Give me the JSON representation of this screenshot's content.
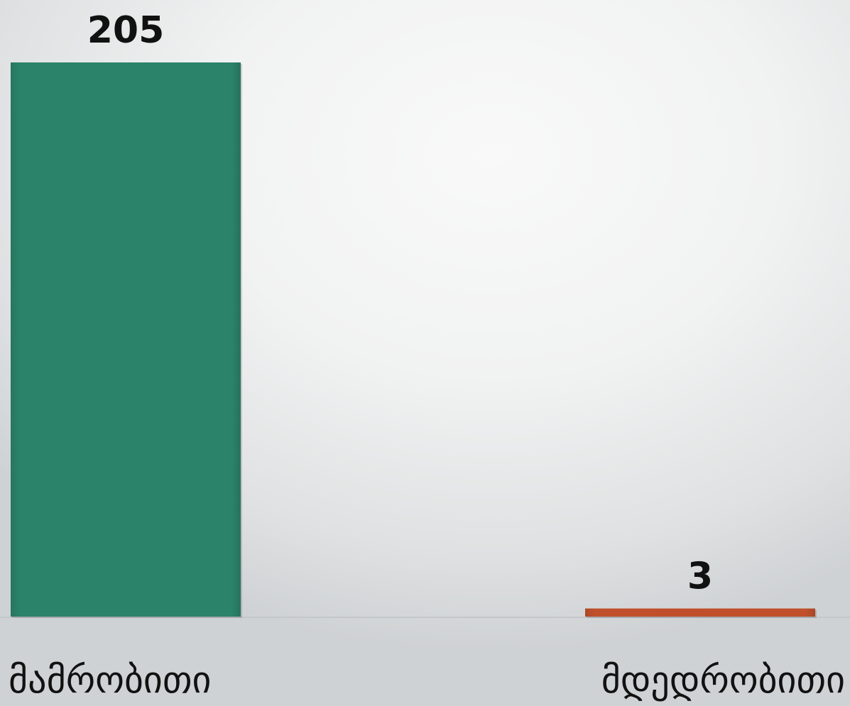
{
  "chart_data": {
    "type": "bar",
    "categories": [
      "მამრობითი",
      "მდედრობითი"
    ],
    "values": [
      205,
      3
    ],
    "data_labels": [
      "205",
      "3"
    ],
    "colors": [
      "#2b8369",
      "#c0502b"
    ],
    "ylim": [
      0,
      205
    ],
    "grid": false,
    "legend": "none"
  }
}
